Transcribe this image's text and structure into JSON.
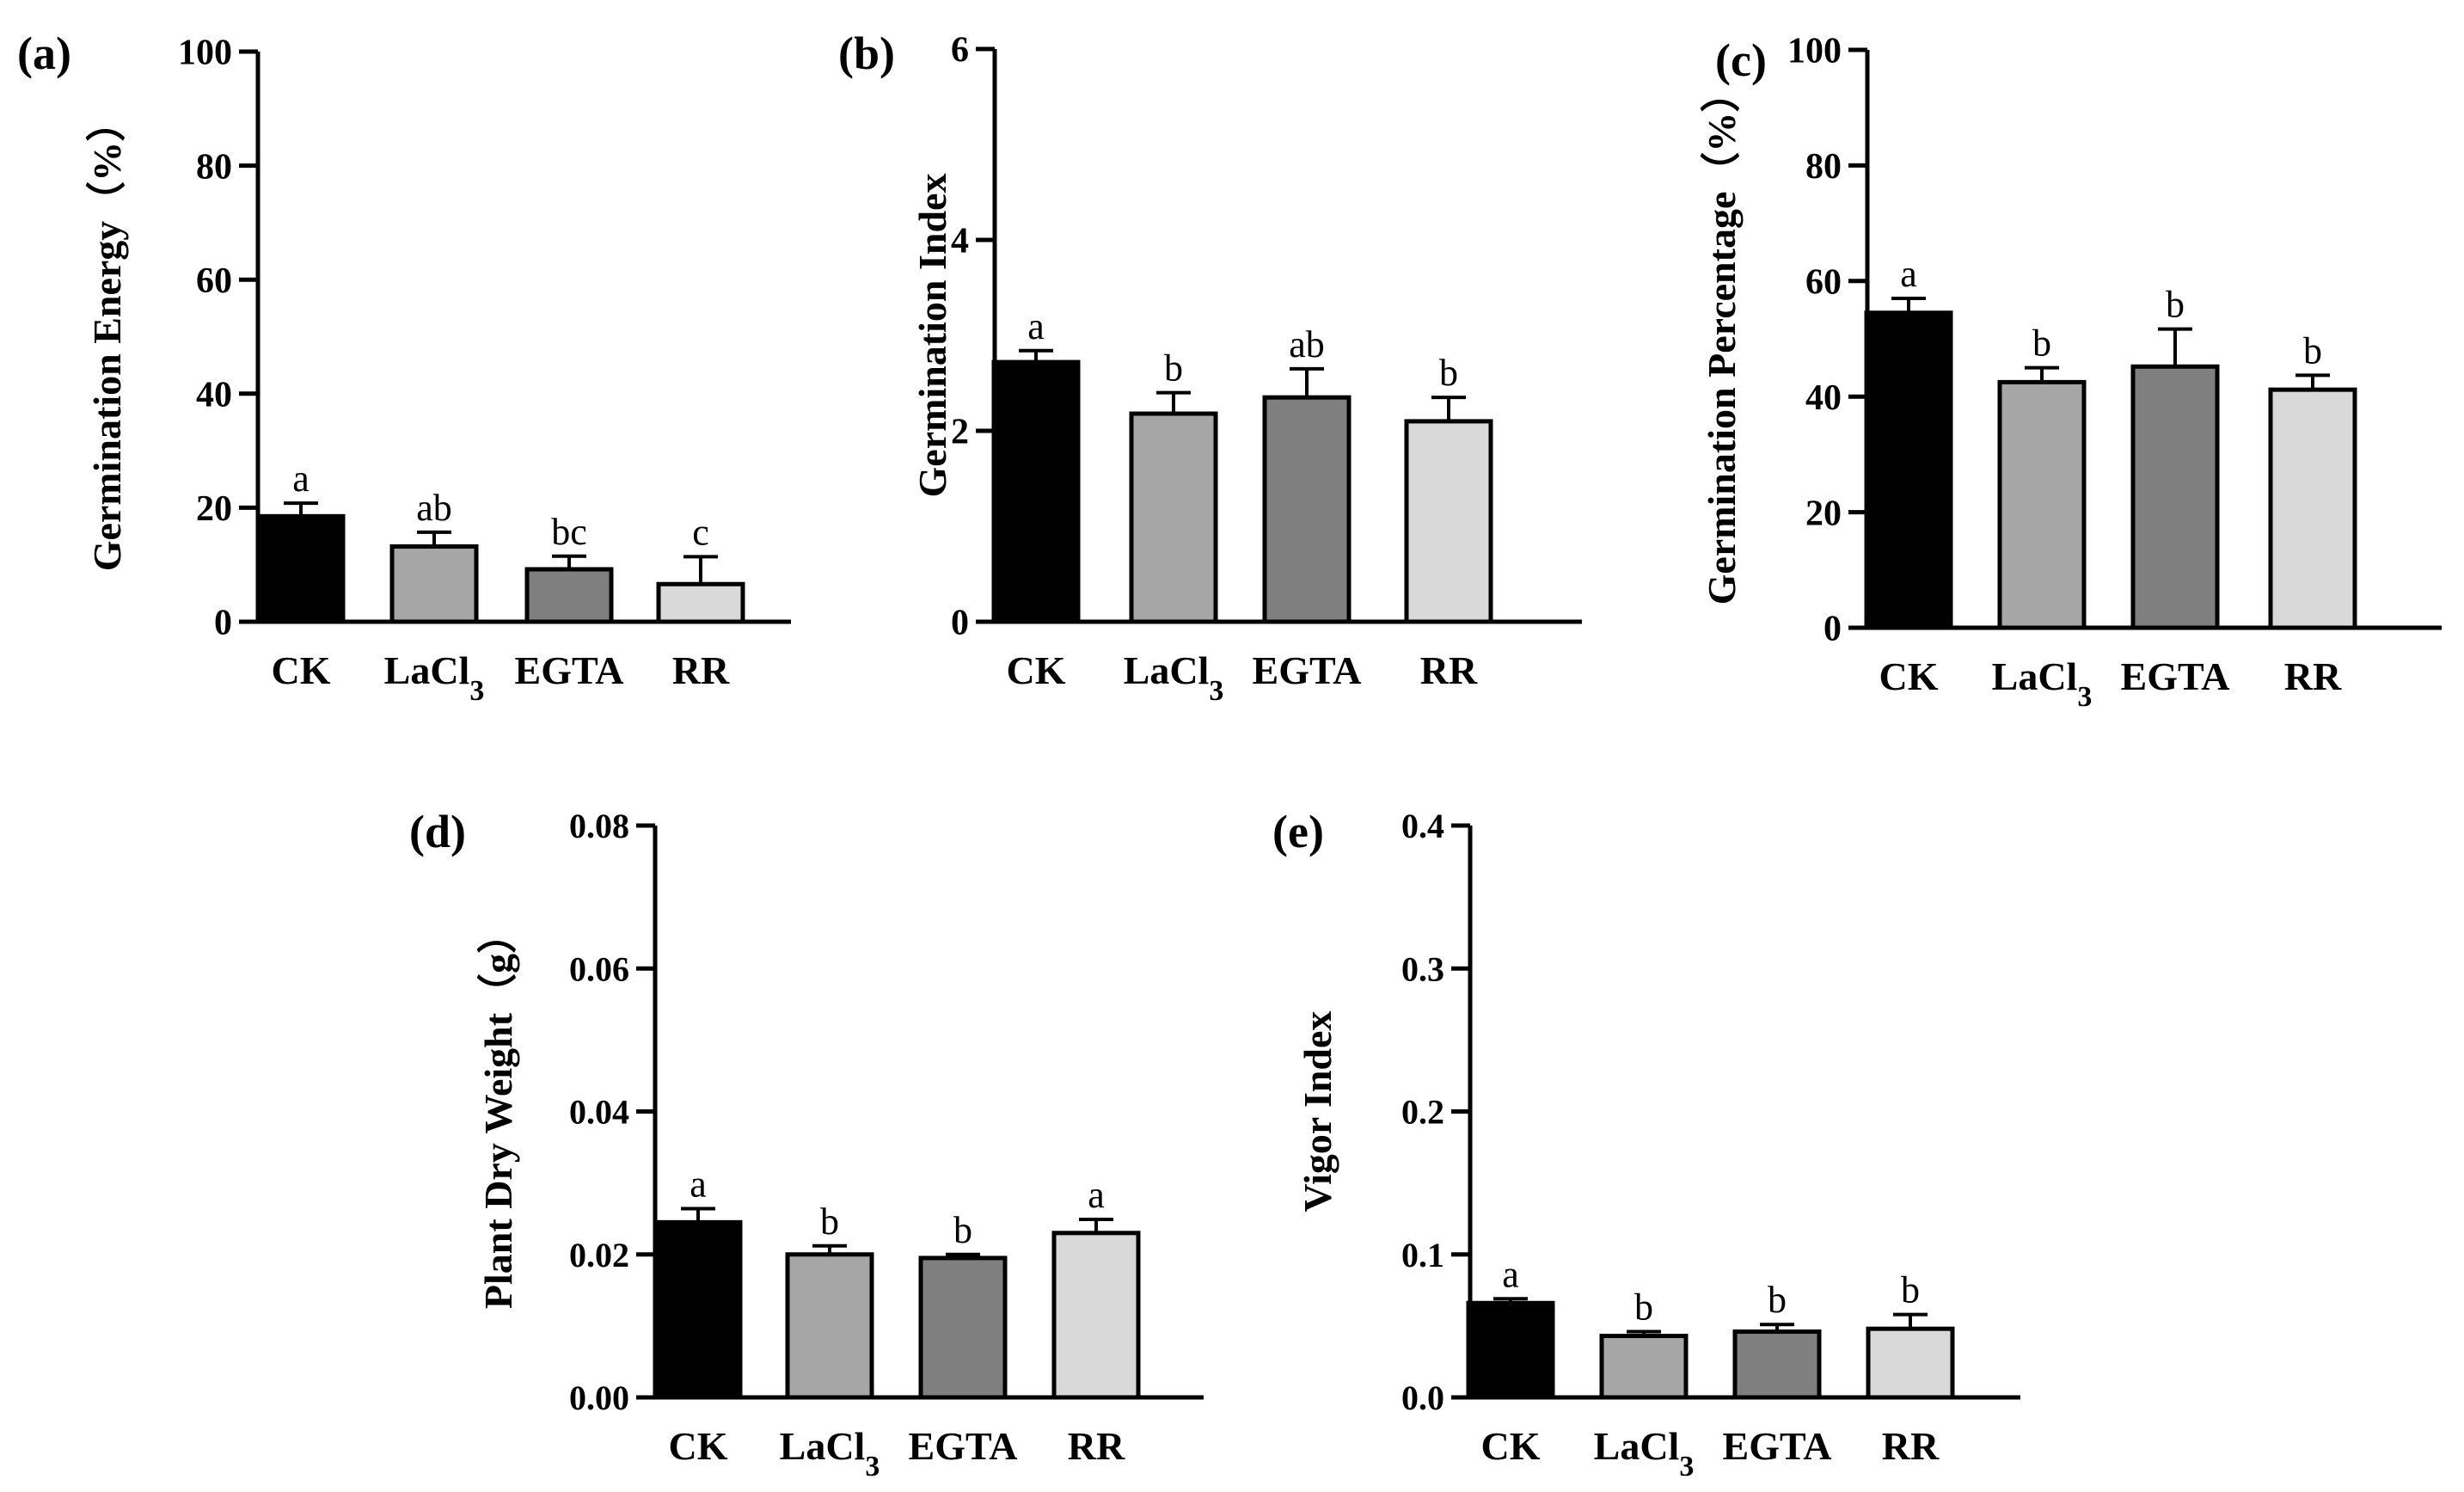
{
  "chart_data": [
    {
      "panel_label": "(a)",
      "type": "bar",
      "categories": [
        "CK",
        "LaCl3",
        "EGTA",
        "RR"
      ],
      "values": [
        18.5,
        13.2,
        9.2,
        6.6
      ],
      "errors": [
        2.3,
        2.5,
        2.3,
        4.8
      ],
      "sig_letters": [
        "a",
        "ab",
        "bc",
        "c"
      ],
      "ylabel": "Germination Energy（%）",
      "ylim": [
        0,
        100
      ],
      "yticks": [
        "0",
        "20",
        "40",
        "60",
        "80",
        "100"
      ]
    },
    {
      "panel_label": "(b)",
      "type": "bar",
      "categories": [
        "CK",
        "LaCl3",
        "EGTA",
        "RR"
      ],
      "values": [
        2.72,
        2.18,
        2.35,
        2.1
      ],
      "errors": [
        0.12,
        0.22,
        0.3,
        0.25
      ],
      "sig_letters": [
        "a",
        "b",
        "ab",
        "b"
      ],
      "ylabel": "Germination Index",
      "ylim": [
        0,
        6
      ],
      "yticks": [
        "0",
        "2",
        "4",
        "6"
      ]
    },
    {
      "panel_label": "(c)",
      "type": "bar",
      "categories": [
        "CK",
        "LaCl3",
        "EGTA",
        "RR"
      ],
      "values": [
        54.5,
        42.5,
        45.2,
        41.2
      ],
      "errors": [
        2.5,
        2.5,
        6.5,
        2.5
      ],
      "sig_letters": [
        "a",
        "b",
        "b",
        "b"
      ],
      "ylabel": "Germination Percentage（%）",
      "ylim": [
        0,
        100
      ],
      "yticks": [
        "0",
        "20",
        "40",
        "60",
        "80",
        "100"
      ]
    },
    {
      "panel_label": "(d)",
      "type": "bar",
      "categories": [
        "CK",
        "LaCl3",
        "EGTA",
        "RR"
      ],
      "values": [
        0.0245,
        0.02,
        0.0195,
        0.023
      ],
      "errors": [
        0.0019,
        0.0012,
        0.0005,
        0.0019
      ],
      "sig_letters": [
        "a",
        "b",
        "b",
        "a"
      ],
      "ylabel": "Plant Dry Weight（g）",
      "ylim": [
        0,
        0.08
      ],
      "yticks": [
        "0.00",
        "0.02",
        "0.04",
        "0.06",
        "0.08"
      ]
    },
    {
      "panel_label": "(e)",
      "type": "bar",
      "categories": [
        "CK",
        "LaCl3",
        "EGTA",
        "RR"
      ],
      "values": [
        0.066,
        0.043,
        0.046,
        0.048
      ],
      "errors": [
        0.003,
        0.003,
        0.005,
        0.01
      ],
      "sig_letters": [
        "a",
        "b",
        "b",
        "b"
      ],
      "ylabel": "Vigor Index",
      "ylim": [
        0,
        0.4
      ],
      "yticks": [
        "0.0",
        "0.1",
        "0.2",
        "0.3",
        "0.4"
      ]
    }
  ],
  "colors": {
    "bars": [
      "#000000",
      "#a6a6a6",
      "#7f7f7f",
      "#d9d9d9"
    ],
    "axis": "#000000"
  }
}
